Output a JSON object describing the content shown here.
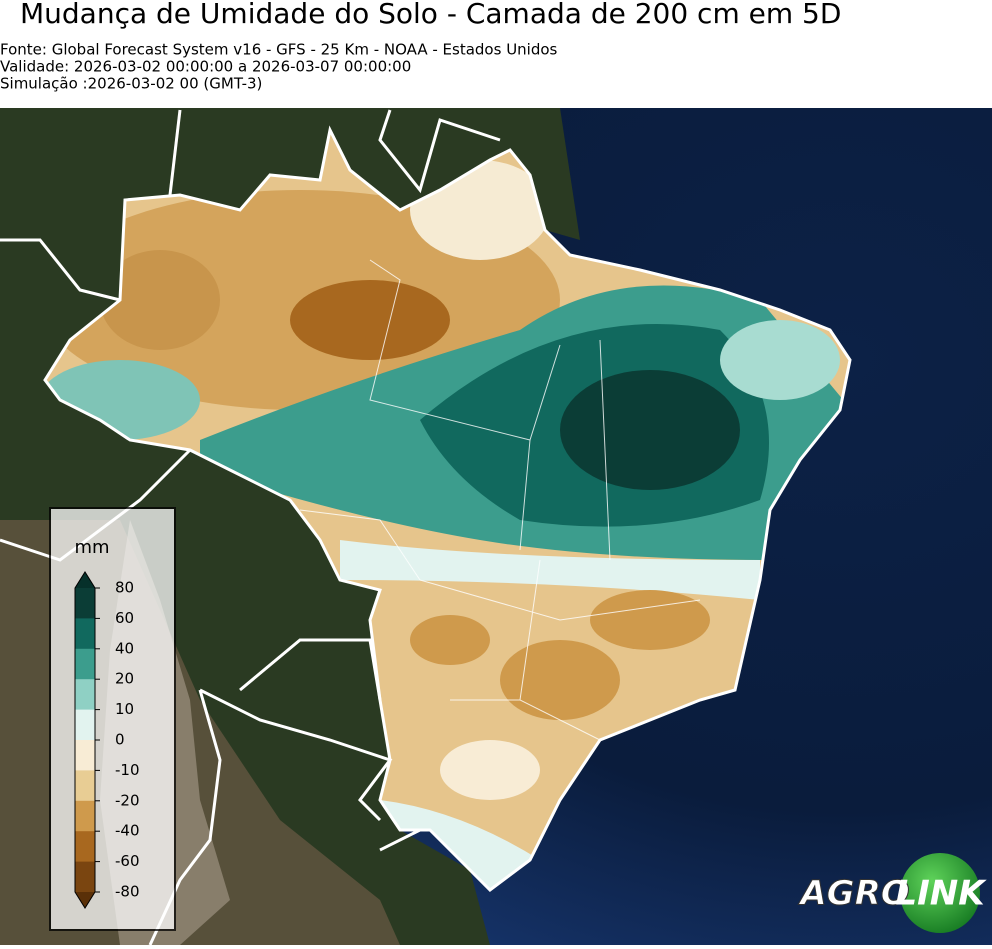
{
  "header": {
    "title": "Mudança de Umidade do Solo - Camada de 200 cm em 5D",
    "info": [
      "Fonte: Global Forecast System v16 - GFS - 25 Km - NOAA - Estados Unidos",
      "Validade: 2026-03-02 00:00:00 a 2026-03-07 00:00:00",
      "Simulação :2026-03-02 00 (GMT-3)"
    ]
  },
  "colorbar": {
    "label": "mm",
    "ticks": [
      80,
      60,
      40,
      20,
      10,
      0,
      -10,
      -20,
      -40,
      -60,
      -80
    ],
    "colors": [
      "#0b3d36",
      "#11695e",
      "#3c9d8d",
      "#8fd0c4",
      "#e2f3ef",
      "#f8ecd5",
      "#e8cd94",
      "#cf9a4c",
      "#a8681f",
      "#7a4510"
    ],
    "extend_colors": [
      "#06302a",
      "#5a3008"
    ]
  },
  "logo": [
    "AGRO",
    "LINK"
  ]
}
